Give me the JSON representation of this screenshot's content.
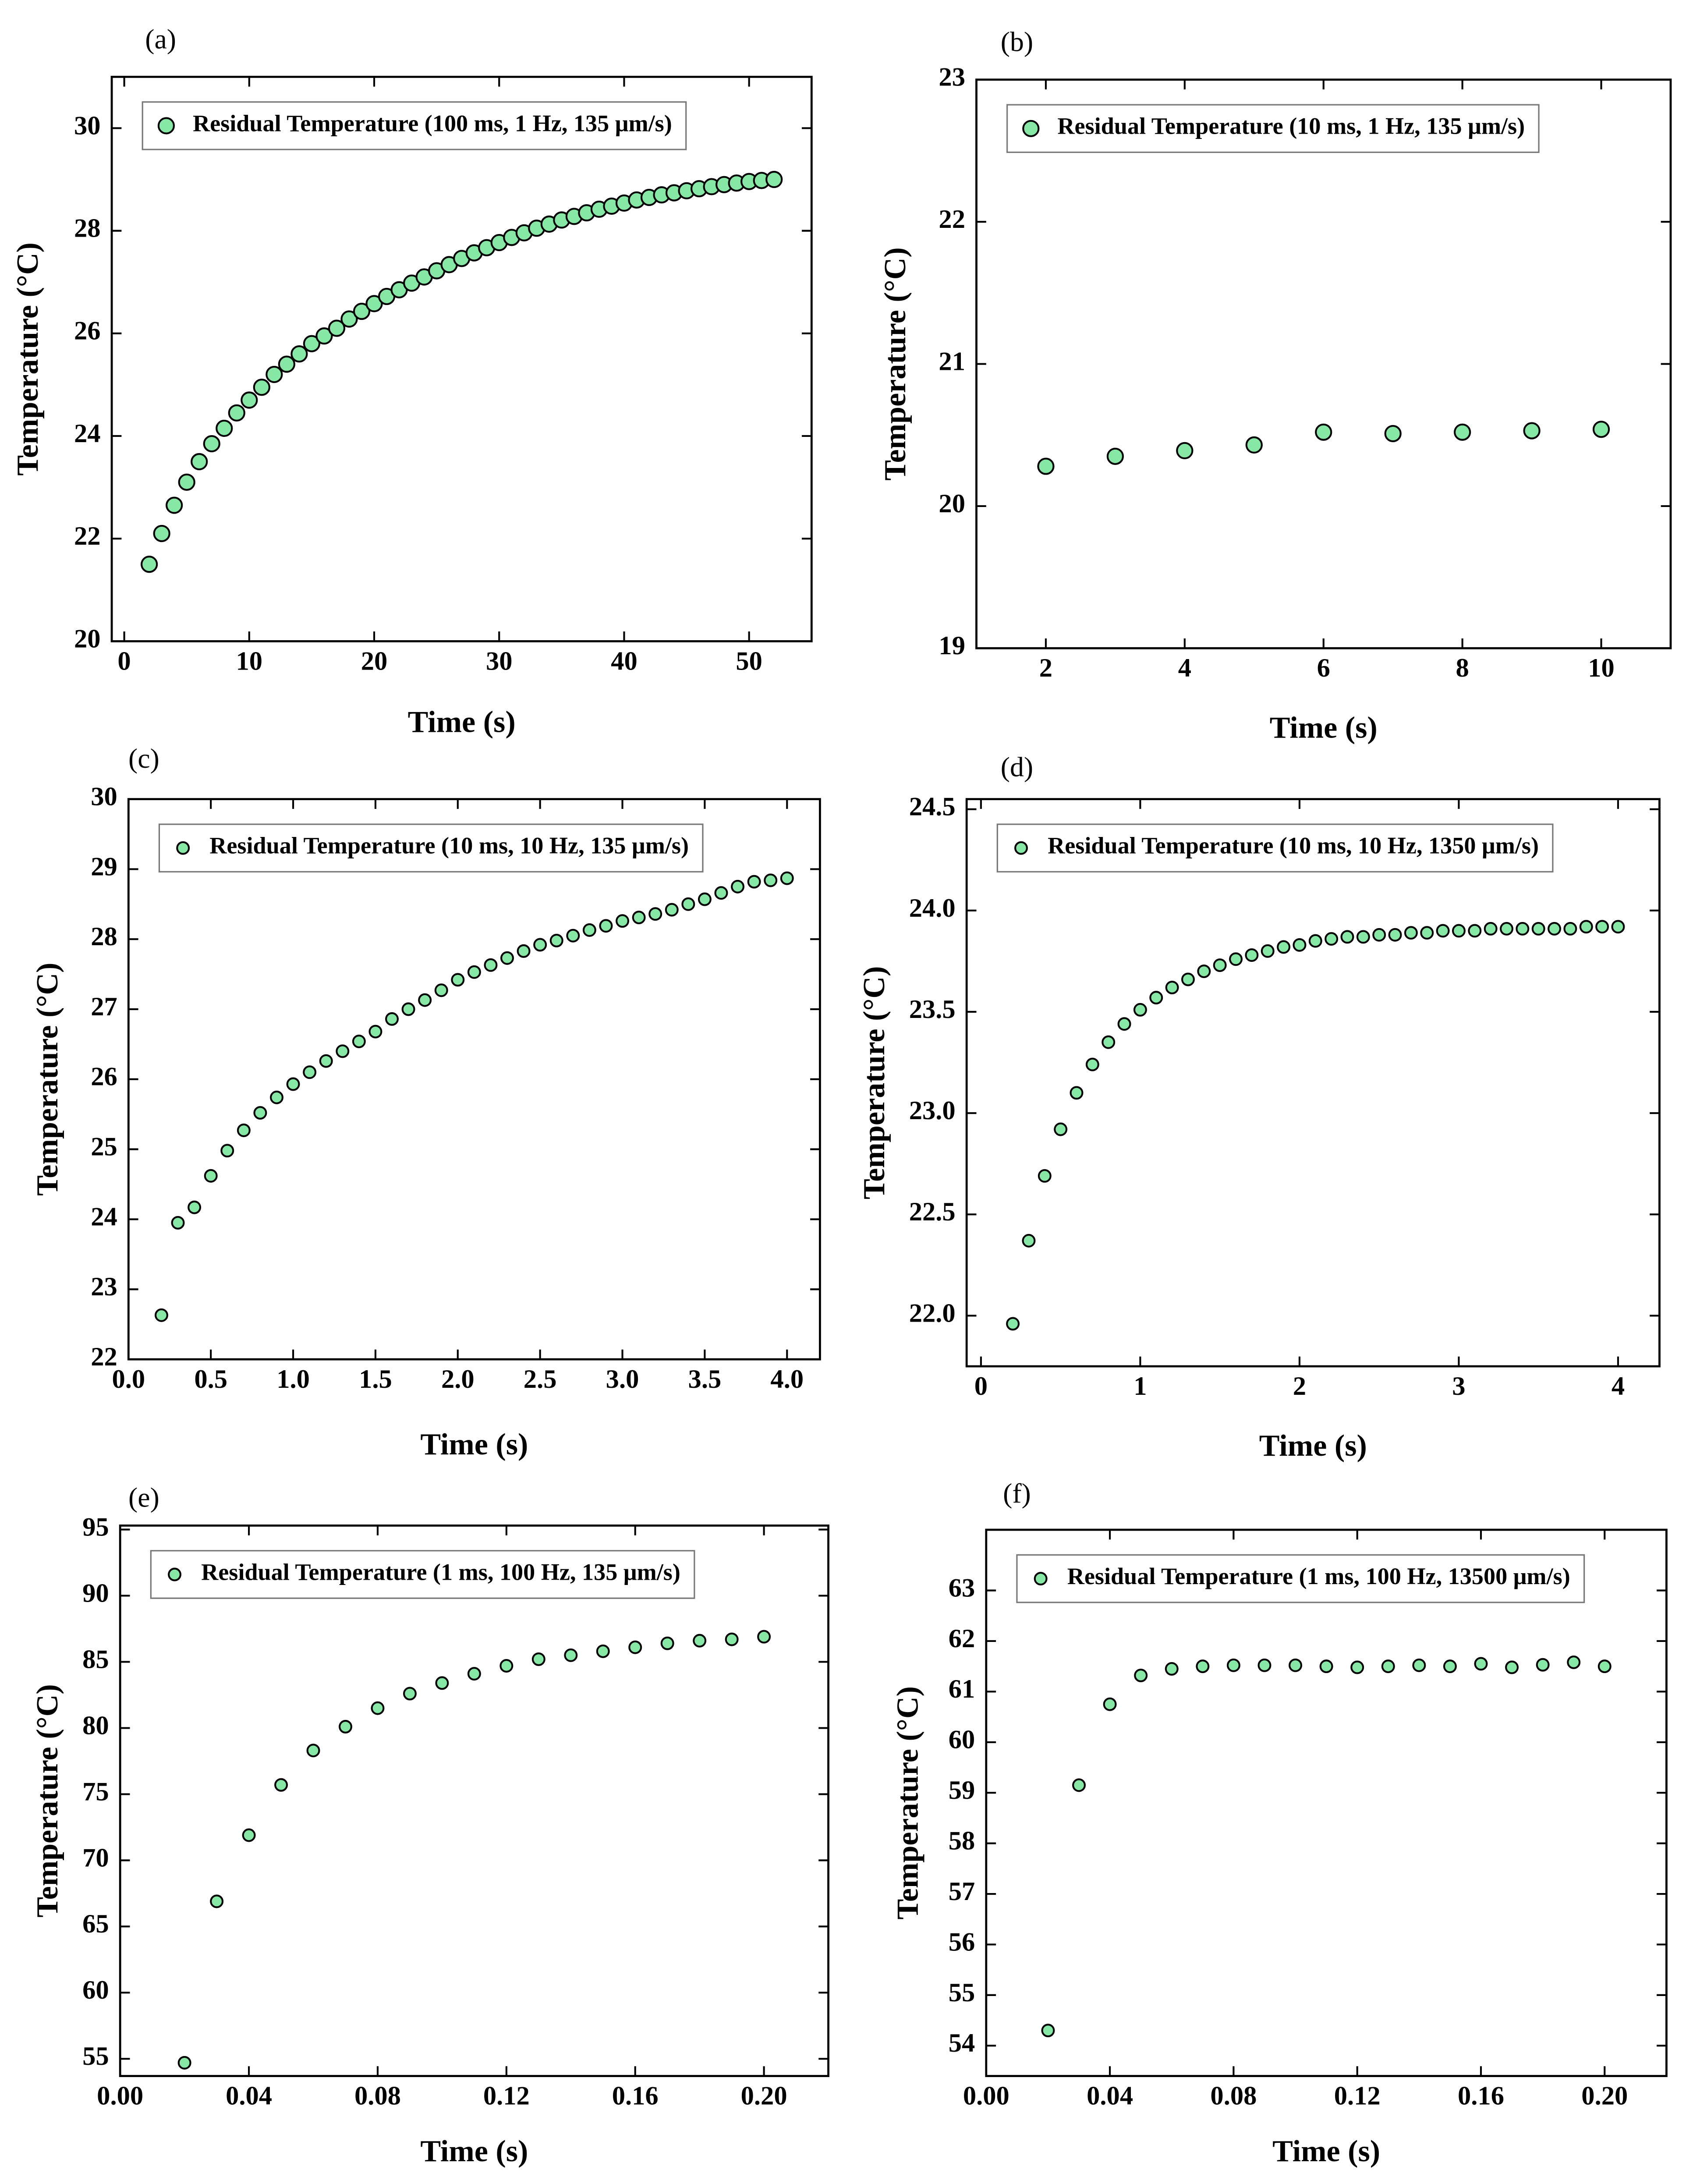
{
  "chart_data": [
    {
      "type": "scatter",
      "panel_label": "(a)",
      "xlabel": "Time (s)",
      "ylabel": "Temperature (°C)",
      "x": [
        2,
        3,
        4,
        5,
        6,
        7,
        8,
        9,
        10,
        11,
        12,
        13,
        14,
        15,
        16,
        17,
        18,
        19,
        20,
        21,
        22,
        23,
        24,
        25,
        26,
        27,
        28,
        29,
        30,
        31,
        32,
        33,
        34,
        35,
        36,
        37,
        38,
        39,
        40,
        41,
        42,
        43,
        44,
        45,
        46,
        47,
        48,
        49,
        50,
        51,
        52
      ],
      "series": [
        {
          "name": "Residual Temperature (100 ms, 1 Hz, 135 μm/s)",
          "color": "#86e8a4",
          "values": [
            21.5,
            22.1,
            22.65,
            23.1,
            23.5,
            23.85,
            24.15,
            24.45,
            24.7,
            24.95,
            25.2,
            25.4,
            25.6,
            25.8,
            25.95,
            26.1,
            26.28,
            26.43,
            26.58,
            26.72,
            26.85,
            26.98,
            27.1,
            27.22,
            27.34,
            27.46,
            27.57,
            27.67,
            27.77,
            27.87,
            27.96,
            28.05,
            28.13,
            28.21,
            28.28,
            28.35,
            28.42,
            28.48,
            28.54,
            28.6,
            28.65,
            28.7,
            28.74,
            28.78,
            28.82,
            28.86,
            28.9,
            28.93,
            28.96,
            28.98,
            29.0
          ]
        }
      ],
      "xlim": [
        -1,
        55
      ],
      "ylim": [
        20,
        31
      ],
      "xticks": [
        0,
        10,
        20,
        30,
        40,
        50
      ],
      "yticks": [
        20,
        22,
        24,
        26,
        28,
        30
      ]
    },
    {
      "type": "scatter",
      "panel_label": "(b)",
      "xlabel": "Time (s)",
      "ylabel": "Temperature (°C)",
      "x": [
        2,
        3,
        4,
        5,
        6,
        7,
        8,
        9,
        10
      ],
      "series": [
        {
          "name": "Residual Temperature (10 ms, 1 Hz, 135 μm/s)",
          "color": "#86e8a4",
          "values": [
            20.28,
            20.35,
            20.39,
            20.43,
            20.52,
            20.51,
            20.52,
            20.53,
            20.54
          ]
        }
      ],
      "xlim": [
        1,
        11
      ],
      "ylim": [
        19,
        23
      ],
      "xticks": [
        2,
        4,
        6,
        8,
        10
      ],
      "yticks": [
        19,
        20,
        21,
        22,
        23
      ]
    },
    {
      "type": "scatter",
      "panel_label": "(c)",
      "xlabel": "Time (s)",
      "ylabel": "Temperature (°C)",
      "x": [
        0.2,
        0.3,
        0.4,
        0.5,
        0.6,
        0.7,
        0.8,
        0.9,
        1.0,
        1.1,
        1.2,
        1.3,
        1.4,
        1.5,
        1.6,
        1.7,
        1.8,
        1.9,
        2.0,
        2.1,
        2.2,
        2.3,
        2.4,
        2.5,
        2.6,
        2.7,
        2.8,
        2.9,
        3.0,
        3.1,
        3.2,
        3.3,
        3.4,
        3.5,
        3.6,
        3.7,
        3.8,
        3.9,
        4.0
      ],
      "series": [
        {
          "name": "Residual Temperature (10 ms, 10 Hz, 135 μm/s)",
          "color": "#86e8a4",
          "values": [
            22.63,
            23.95,
            24.17,
            24.62,
            24.98,
            25.27,
            25.52,
            25.74,
            25.93,
            26.1,
            26.26,
            26.4,
            26.54,
            26.68,
            26.86,
            27.0,
            27.13,
            27.27,
            27.42,
            27.53,
            27.63,
            27.73,
            27.83,
            27.92,
            27.98,
            28.05,
            28.13,
            28.19,
            28.26,
            28.31,
            28.36,
            28.42,
            28.5,
            28.57,
            28.66,
            28.75,
            28.82,
            28.84,
            28.87
          ]
        }
      ],
      "xlim": [
        0,
        4.2
      ],
      "ylim": [
        22,
        30
      ],
      "xticks": [
        {
          "value": 0,
          "label": "0.0"
        },
        0.5,
        {
          "value": 1,
          "label": "1.0"
        },
        1.5,
        {
          "value": 2,
          "label": "2.0"
        },
        2.5,
        {
          "value": 3,
          "label": "3.0"
        },
        3.5,
        {
          "value": 4,
          "label": "4.0"
        }
      ],
      "yticks": [
        22,
        23,
        24,
        25,
        26,
        27,
        28,
        29,
        30
      ]
    },
    {
      "type": "scatter",
      "panel_label": "(d)",
      "xlabel": "Time (s)",
      "ylabel": "Temperature (°C)",
      "x": [
        0.2,
        0.3,
        0.4,
        0.5,
        0.6,
        0.7,
        0.8,
        0.9,
        1.0,
        1.1,
        1.2,
        1.3,
        1.4,
        1.5,
        1.6,
        1.7,
        1.8,
        1.9,
        2.0,
        2.1,
        2.2,
        2.3,
        2.4,
        2.5,
        2.6,
        2.7,
        2.8,
        2.9,
        3.0,
        3.1,
        3.2,
        3.3,
        3.4,
        3.5,
        3.6,
        3.7,
        3.8,
        3.9,
        4.0
      ],
      "series": [
        {
          "name": "Residual Temperature (10 ms, 10 Hz, 1350 μm/s)",
          "color": "#86e8a4",
          "values": [
            21.96,
            22.37,
            22.69,
            22.92,
            23.1,
            23.24,
            23.35,
            23.44,
            23.51,
            23.57,
            23.62,
            23.66,
            23.7,
            23.73,
            23.76,
            23.78,
            23.8,
            23.82,
            23.83,
            23.85,
            23.86,
            23.87,
            23.87,
            23.88,
            23.88,
            23.89,
            23.89,
            23.9,
            23.9,
            23.9,
            23.91,
            23.91,
            23.91,
            23.91,
            23.91,
            23.91,
            23.92,
            23.92,
            23.92
          ]
        }
      ],
      "xlim": [
        -0.09,
        4.26
      ],
      "ylim": [
        21.75,
        24.55
      ],
      "xticks": [
        0,
        1,
        2,
        3,
        4
      ],
      "yticks": [
        {
          "value": 22,
          "label": "22.0"
        },
        22.5,
        {
          "value": 23,
          "label": "23.0"
        },
        23.5,
        {
          "value": 24,
          "label": "24.0"
        },
        24.5
      ]
    },
    {
      "type": "scatter",
      "panel_label": "(e)",
      "xlabel": "Time (s)",
      "ylabel": "Temperature (°C)",
      "x": [
        0.02,
        0.03,
        0.04,
        0.05,
        0.06,
        0.07,
        0.08,
        0.09,
        0.1,
        0.11,
        0.12,
        0.13,
        0.14,
        0.15,
        0.16,
        0.17,
        0.18,
        0.19,
        0.2
      ],
      "series": [
        {
          "name": "Residual Temperature (1 ms, 100 Hz, 135 μm/s)",
          "color": "#86e8a4",
          "values": [
            54.7,
            66.9,
            71.9,
            75.7,
            78.3,
            80.1,
            81.5,
            82.6,
            83.4,
            84.1,
            84.7,
            85.2,
            85.5,
            85.8,
            86.1,
            86.4,
            86.6,
            86.7,
            86.9
          ]
        }
      ],
      "xlim": [
        0,
        0.22
      ],
      "ylim": [
        53.7,
        95.3
      ],
      "xticks": [
        {
          "value": 0,
          "label": "0.00"
        },
        0.04,
        0.08,
        0.12,
        0.16,
        {
          "value": 0.2,
          "label": "0.20"
        }
      ],
      "yticks": [
        55,
        60,
        65,
        70,
        75,
        80,
        85,
        90,
        95
      ]
    },
    {
      "type": "scatter",
      "panel_label": "(f)",
      "xlabel": "Time (s)",
      "ylabel": "Temperature (°C)",
      "x": [
        0.02,
        0.03,
        0.04,
        0.05,
        0.06,
        0.07,
        0.08,
        0.09,
        0.1,
        0.11,
        0.12,
        0.13,
        0.14,
        0.15,
        0.16,
        0.17,
        0.18,
        0.19,
        0.2
      ],
      "series": [
        {
          "name": "Residual Temperature (1 ms, 100 Hz, 13500 μm/s)",
          "color": "#86e8a4",
          "values": [
            54.3,
            59.15,
            60.75,
            61.32,
            61.45,
            61.5,
            61.52,
            61.52,
            61.52,
            61.5,
            61.48,
            61.5,
            61.52,
            61.5,
            61.55,
            61.48,
            61.53,
            61.58,
            61.5
          ]
        }
      ],
      "xlim": [
        0,
        0.22
      ],
      "ylim": [
        53.4,
        64.2
      ],
      "xticks": [
        {
          "value": 0,
          "label": "0.00"
        },
        0.04,
        0.08,
        0.12,
        0.16,
        {
          "value": 0.2,
          "label": "0.20"
        }
      ],
      "yticks": [
        54,
        55,
        56,
        57,
        58,
        59,
        60,
        61,
        62,
        63
      ]
    }
  ]
}
